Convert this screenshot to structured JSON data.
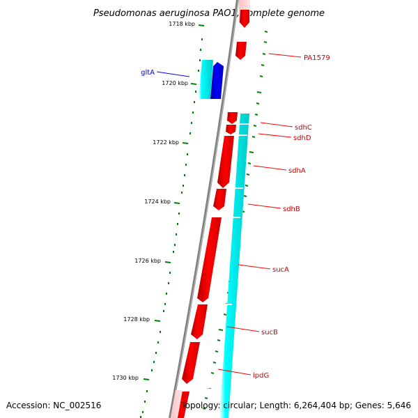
{
  "title": "Pseudomonas aeruginosa PAO1, complete genome",
  "footer": {
    "accession": "Accession: NC_002516",
    "topology": "Topology: circular; Length: 6,264,404 bp; Genes: 5,646"
  },
  "ruler": [
    "1718 kbp",
    "1720 kbp",
    "1722 kbp",
    "1724 kbp",
    "1726 kbp",
    "1728 kbp",
    "1730 kbp"
  ],
  "genes": {
    "gltA": "gltA",
    "pa1579": "PA1579",
    "sdhC": "sdhC",
    "sdhD": "sdhD",
    "sdhA": "sdhA",
    "sdhB": "sdhB",
    "sucA": "sucA",
    "sucB": "sucB",
    "lpdG": "lpdG"
  },
  "colors": {
    "forward_strand": "#ff0000",
    "reverse_strand": "#0000ff",
    "cds": "#00e0e0",
    "backbone": "#808080",
    "tick": "#008000",
    "label_red": "#cc0000",
    "label_blue": "#0000cc"
  }
}
